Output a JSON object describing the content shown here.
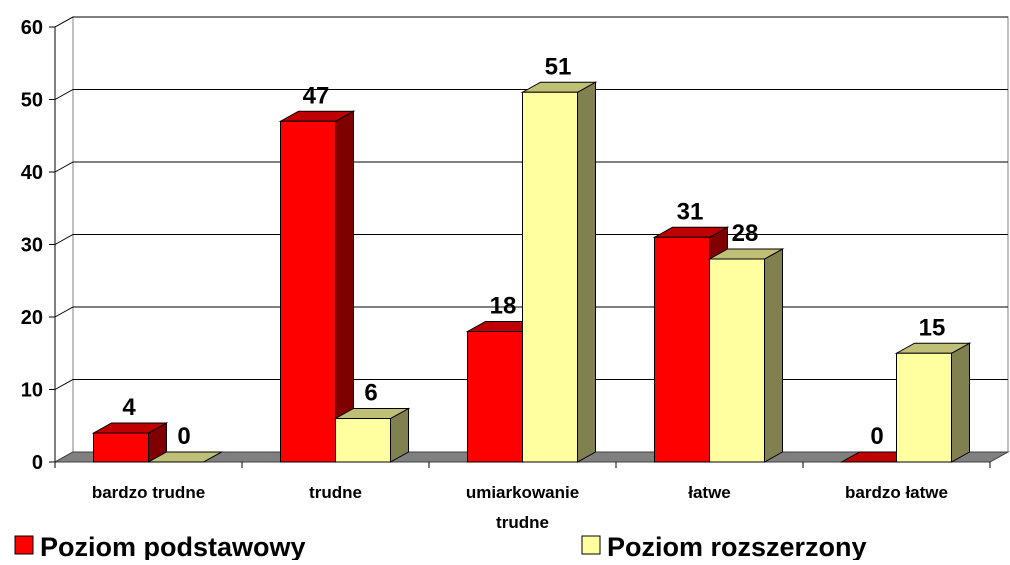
{
  "chart_data": {
    "type": "bar3d",
    "categories": [
      "bardzo trudne",
      "trudne",
      "umiarkowanie trudne",
      "łatwe",
      "bardzo łatwe"
    ],
    "series": [
      {
        "name": "Poziom podstawowy",
        "color": "#ff0000",
        "values": [
          4,
          47,
          18,
          31,
          0
        ]
      },
      {
        "name": "Poziom rozszerzony",
        "color": "#ffffa0",
        "values": [
          0,
          6,
          51,
          28,
          15
        ]
      }
    ],
    "ylim": [
      0,
      60
    ],
    "yticks": [
      0,
      10,
      20,
      30,
      40,
      50,
      60
    ],
    "grid": true,
    "legend": "bottom"
  }
}
